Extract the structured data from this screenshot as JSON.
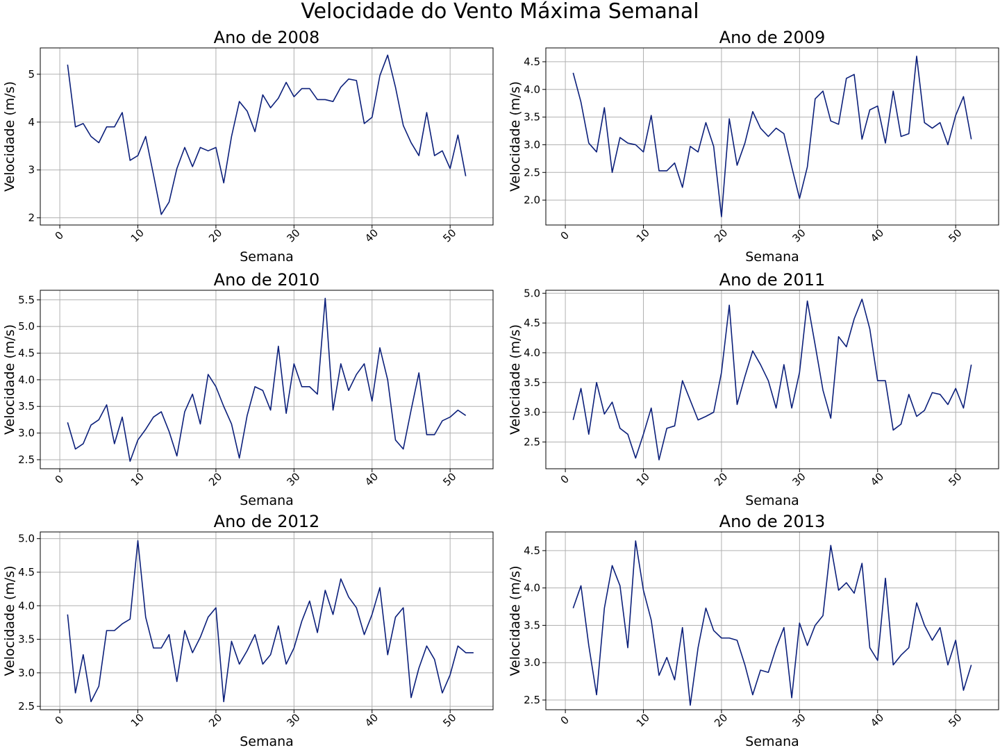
{
  "figure": {
    "title": "Velocidade do Vento Máxima Semanal"
  },
  "style": {
    "line_color": "#0b1f7a",
    "grid_color": "#b0b0b0"
  },
  "chart_data": [
    {
      "type": "line",
      "title": "Ano de 2008",
      "xlabel": "Semana",
      "ylabel": "Velocidade (m/s)",
      "xlim": [
        -2.5,
        55.5
      ],
      "ylim": [
        1.85,
        5.55
      ],
      "xticks": [
        0,
        10,
        20,
        30,
        40,
        50
      ],
      "yticks": [
        2,
        3,
        4,
        5
      ],
      "ytick_labels": [
        "2",
        "3",
        "4",
        "5"
      ],
      "grid": true,
      "series": [
        {
          "x_start": 1,
          "values": [
            5.2,
            3.9,
            3.97,
            3.7,
            3.57,
            3.9,
            3.9,
            4.2,
            3.2,
            3.3,
            3.7,
            2.9,
            2.07,
            2.33,
            3.03,
            3.47,
            3.07,
            3.47,
            3.4,
            3.47,
            2.73,
            3.7,
            4.43,
            4.23,
            3.8,
            4.57,
            4.3,
            4.5,
            4.83,
            4.53,
            4.7,
            4.7,
            4.47,
            4.47,
            4.43,
            4.73,
            4.9,
            4.87,
            3.97,
            4.1,
            4.97,
            5.4,
            4.73,
            3.93,
            3.57,
            3.3,
            4.2,
            3.3,
            3.4,
            3.03,
            3.73,
            2.87
          ]
        }
      ]
    },
    {
      "type": "line",
      "title": "Ano de 2009",
      "xlabel": "Semana",
      "ylabel": "Velocidade (m/s)",
      "xlim": [
        -2.5,
        55.5
      ],
      "ylim": [
        1.55,
        4.75
      ],
      "xticks": [
        0,
        10,
        20,
        30,
        40,
        50
      ],
      "yticks": [
        2.0,
        2.5,
        3.0,
        3.5,
        4.0,
        4.5
      ],
      "ytick_labels": [
        "2.0",
        "2.5",
        "3.0",
        "3.5",
        "4.0",
        "4.5"
      ],
      "grid": true,
      "series": [
        {
          "x_start": 1,
          "values": [
            4.3,
            3.77,
            3.03,
            2.87,
            3.67,
            2.5,
            3.13,
            3.03,
            3.0,
            2.87,
            3.53,
            2.53,
            2.53,
            2.67,
            2.23,
            2.97,
            2.87,
            3.4,
            2.97,
            1.7,
            3.47,
            2.63,
            3.03,
            3.6,
            3.3,
            3.15,
            3.3,
            3.2,
            2.6,
            2.03,
            2.6,
            3.83,
            3.97,
            3.43,
            3.37,
            4.2,
            4.27,
            3.1,
            3.63,
            3.7,
            3.03,
            3.97,
            3.15,
            3.2,
            4.6,
            3.4,
            3.3,
            3.4,
            3.0,
            3.53,
            3.87,
            3.1
          ]
        }
      ]
    },
    {
      "type": "line",
      "title": "Ano de 2010",
      "xlabel": "Semana",
      "ylabel": "Velocidade (m/s)",
      "xlim": [
        -2.5,
        55.5
      ],
      "ylim": [
        2.33,
        5.68
      ],
      "xticks": [
        0,
        10,
        20,
        30,
        40,
        50
      ],
      "yticks": [
        2.5,
        3.0,
        3.5,
        4.0,
        4.5,
        5.0,
        5.5
      ],
      "ytick_labels": [
        "2.5",
        "3.0",
        "3.5",
        "4.0",
        "4.5",
        "5.0",
        "5.5"
      ],
      "grid": true,
      "series": [
        {
          "x_start": 1,
          "values": [
            3.2,
            2.7,
            2.8,
            3.15,
            3.25,
            3.53,
            2.8,
            3.3,
            2.47,
            2.87,
            3.07,
            3.3,
            3.4,
            3.03,
            2.57,
            3.4,
            3.73,
            3.17,
            4.1,
            3.87,
            3.5,
            3.17,
            2.53,
            3.33,
            3.87,
            3.8,
            3.43,
            4.63,
            3.37,
            4.3,
            3.87,
            3.87,
            3.73,
            5.53,
            3.43,
            4.3,
            3.8,
            4.1,
            4.3,
            3.6,
            4.6,
            4.0,
            2.87,
            2.7,
            3.43,
            4.13,
            2.97,
            2.97,
            3.23,
            3.3,
            3.43,
            3.33
          ]
        }
      ]
    },
    {
      "type": "line",
      "title": "Ano de 2011",
      "xlabel": "Semana",
      "ylabel": "Velocidade (m/s)",
      "xlim": [
        -2.5,
        55.5
      ],
      "ylim": [
        2.05,
        5.05
      ],
      "xticks": [
        0,
        10,
        20,
        30,
        40,
        50
      ],
      "yticks": [
        2.5,
        3.0,
        3.5,
        4.0,
        4.5,
        5.0
      ],
      "ytick_labels": [
        "2.5",
        "3.0",
        "3.5",
        "4.0",
        "4.5",
        "5.0"
      ],
      "grid": true,
      "series": [
        {
          "x_start": 1,
          "values": [
            2.87,
            3.4,
            2.63,
            3.5,
            2.97,
            3.17,
            2.73,
            2.63,
            2.23,
            2.63,
            3.07,
            2.2,
            2.73,
            2.77,
            3.53,
            3.2,
            2.87,
            2.93,
            3.0,
            3.67,
            4.8,
            3.13,
            3.6,
            4.03,
            3.8,
            3.53,
            3.07,
            3.8,
            3.07,
            3.67,
            4.87,
            4.13,
            3.37,
            2.9,
            4.27,
            4.1,
            4.57,
            4.9,
            4.4,
            3.53,
            3.53,
            2.7,
            2.8,
            3.3,
            2.93,
            3.03,
            3.33,
            3.3,
            3.13,
            3.4,
            3.07,
            3.8
          ]
        }
      ]
    },
    {
      "type": "line",
      "title": "Ano de 2012",
      "xlabel": "Semana",
      "ylabel": "Velocidade (m/s)",
      "xlim": [
        -2.5,
        55.5
      ],
      "ylim": [
        2.45,
        5.1
      ],
      "xticks": [
        0,
        10,
        20,
        30,
        40,
        50
      ],
      "yticks": [
        2.5,
        3.0,
        3.5,
        4.0,
        4.5,
        5.0
      ],
      "ytick_labels": [
        "2.5",
        "3.0",
        "3.5",
        "4.0",
        "4.5",
        "5.0"
      ],
      "grid": true,
      "series": [
        {
          "x_start": 1,
          "values": [
            3.87,
            2.7,
            3.27,
            2.57,
            2.8,
            3.63,
            3.63,
            3.73,
            3.8,
            4.97,
            3.83,
            3.37,
            3.37,
            3.57,
            2.87,
            3.63,
            3.3,
            3.53,
            3.83,
            3.97,
            2.57,
            3.47,
            3.13,
            3.33,
            3.57,
            3.13,
            3.27,
            3.7,
            3.13,
            3.37,
            3.77,
            4.07,
            3.6,
            4.23,
            3.87,
            4.4,
            4.13,
            3.97,
            3.57,
            3.87,
            4.27,
            3.27,
            3.83,
            3.97,
            2.63,
            3.07,
            3.4,
            3.2,
            2.7,
            2.97,
            3.4,
            3.3,
            3.3
          ]
        }
      ]
    },
    {
      "type": "line",
      "title": "Ano de 2013",
      "xlabel": "Semana",
      "ylabel": "Velocidade (m/s)",
      "xlim": [
        -2.5,
        55.5
      ],
      "ylim": [
        2.37,
        4.75
      ],
      "xticks": [
        0,
        10,
        20,
        30,
        40,
        50
      ],
      "yticks": [
        2.5,
        3.0,
        3.5,
        4.0,
        4.5
      ],
      "ytick_labels": [
        "2.5",
        "3.0",
        "3.5",
        "4.0",
        "4.5"
      ],
      "grid": true,
      "series": [
        {
          "x_start": 1,
          "values": [
            3.73,
            4.03,
            3.23,
            2.57,
            3.73,
            4.3,
            4.03,
            3.2,
            4.63,
            3.97,
            3.57,
            2.83,
            3.07,
            2.77,
            3.47,
            2.43,
            3.2,
            3.73,
            3.43,
            3.33,
            3.33,
            3.3,
            2.97,
            2.57,
            2.9,
            2.87,
            3.2,
            3.47,
            2.53,
            3.53,
            3.23,
            3.5,
            3.63,
            4.57,
            3.97,
            4.07,
            3.93,
            4.33,
            3.2,
            3.03,
            4.13,
            2.97,
            3.1,
            3.2,
            3.8,
            3.5,
            3.3,
            3.47,
            2.97,
            3.3,
            2.63,
            2.97
          ]
        }
      ]
    }
  ]
}
